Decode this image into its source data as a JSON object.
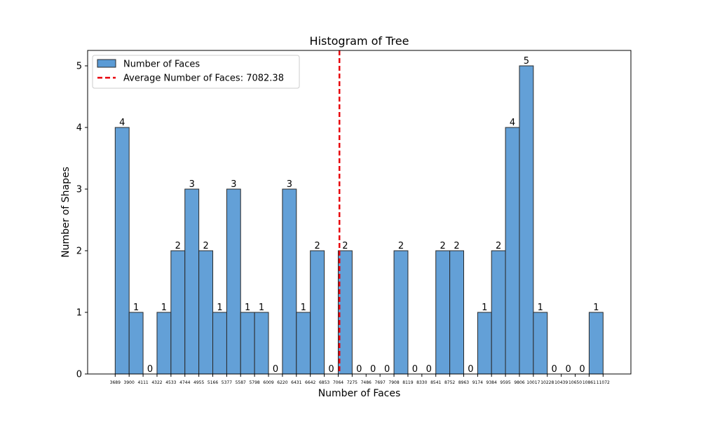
{
  "chart_data": {
    "type": "bar",
    "title": "Histogram of Tree",
    "xlabel": "Number of Faces",
    "ylabel": "Number of Shapes",
    "xlim": [
      3272,
      11493
    ],
    "ylim": [
      0,
      5.25
    ],
    "bin_edges": [
      3689,
      3900,
      4111,
      4322,
      4533,
      4744,
      4955,
      5166,
      5377,
      5587,
      5798,
      6009,
      6220,
      6431,
      6642,
      6853,
      7064,
      7275,
      7486,
      7697,
      7908,
      8119,
      8330,
      8541,
      8752,
      8963,
      9174,
      9384,
      9595,
      9806,
      10017,
      10228,
      10439,
      10650,
      10861,
      11072
    ],
    "counts": [
      4,
      1,
      0,
      1,
      2,
      3,
      2,
      1,
      3,
      1,
      1,
      0,
      3,
      1,
      2,
      0,
      2,
      0,
      0,
      0,
      2,
      0,
      0,
      2,
      2,
      0,
      1,
      2,
      4,
      5,
      1,
      0,
      0,
      0,
      1
    ],
    "x_tick_labels": [
      "3689",
      "3900",
      "4111",
      "4322",
      "4533",
      "4744",
      "4955",
      "5166",
      "5377",
      "5587",
      "5798",
      "6009",
      "6220",
      "6431",
      "6642",
      "6853",
      "7064",
      "7275",
      "7486",
      "7697",
      "7908",
      "8119",
      "8330",
      "8541",
      "8752",
      "8963",
      "9174",
      "9384",
      "9595",
      "9806",
      "10017",
      "10228",
      "10439",
      "10650",
      "10861",
      "11072"
    ],
    "y_ticks": [
      0,
      1,
      2,
      3,
      4,
      5
    ],
    "average": 7082.38,
    "legend": {
      "placement": "top-left",
      "entries": [
        "Number of Faces",
        "Average Number of Faces: 7082.38"
      ]
    },
    "grid": false,
    "colors": {
      "bar_fill": "#5b9bd5",
      "bar_edge": "#2a2a2a",
      "average_line": "#e8000b"
    }
  }
}
